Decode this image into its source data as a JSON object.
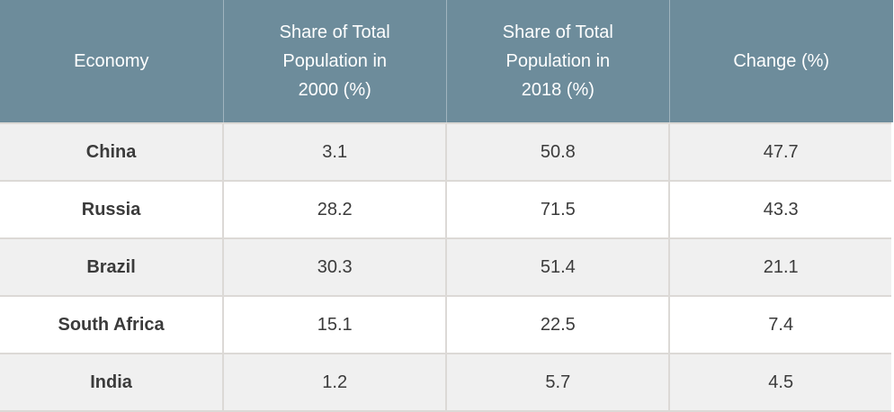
{
  "table": {
    "headers": [
      {
        "label": "Economy",
        "lines": [
          "Economy"
        ]
      },
      {
        "label": "Share of Total Population in 2000 (%)",
        "lines": [
          "Share of Total",
          "Population in",
          "2000 (%)"
        ]
      },
      {
        "label": "Share of Total Population in 2018 (%)",
        "lines": [
          "Share of Total",
          "Population in",
          "2018 (%)"
        ]
      },
      {
        "label": "Change (%)",
        "lines": [
          "Change (%)"
        ]
      }
    ],
    "rows": [
      {
        "economy": "China",
        "share_2000": "3.1",
        "share_2018": "50.8",
        "change": "47.7"
      },
      {
        "economy": "Russia",
        "share_2000": "28.2",
        "share_2018": "71.5",
        "change": "43.3"
      },
      {
        "economy": "Brazil",
        "share_2000": "30.3",
        "share_2018": "51.4",
        "change": "21.1"
      },
      {
        "economy": "South Africa",
        "share_2000": "15.1",
        "share_2018": "22.5",
        "change": "7.4"
      },
      {
        "economy": "India",
        "share_2000": "1.2",
        "share_2018": "5.7",
        "change": "4.5"
      }
    ]
  },
  "colors": {
    "header_bg": "#6d8c9b",
    "header_text": "#ffffff",
    "row_odd_bg": "#f0f0f0",
    "row_even_bg": "#ffffff",
    "grid_line": "#dcd9d6",
    "body_text": "#3b3b3b"
  },
  "chart_data": {
    "type": "table",
    "columns": [
      "Economy",
      "Share of Total Population in 2000 (%)",
      "Share of Total Population in 2018 (%)",
      "Change (%)"
    ],
    "rows": [
      [
        "China",
        3.1,
        50.8,
        47.7
      ],
      [
        "Russia",
        28.2,
        71.5,
        43.3
      ],
      [
        "Brazil",
        30.3,
        51.4,
        21.1
      ],
      [
        "South Africa",
        15.1,
        22.5,
        7.4
      ],
      [
        "India",
        1.2,
        5.7,
        4.5
      ]
    ]
  }
}
